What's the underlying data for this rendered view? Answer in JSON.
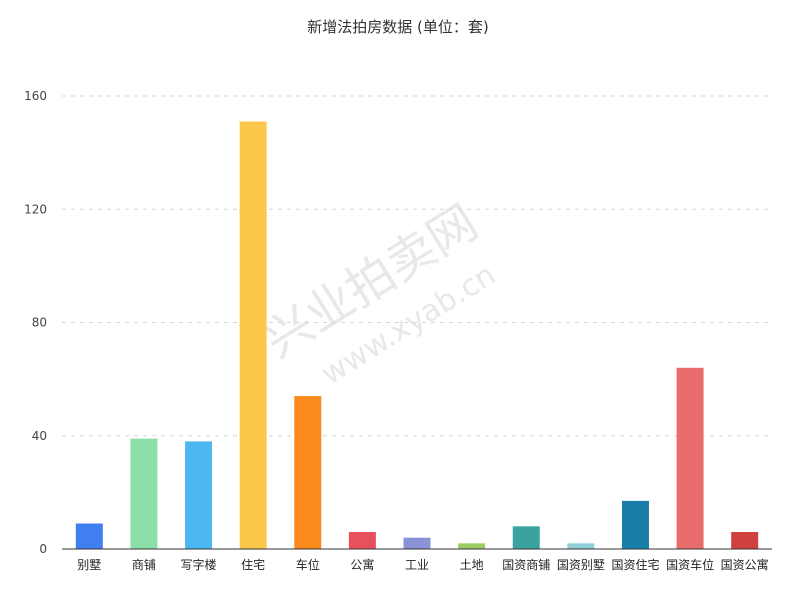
{
  "chart_data": {
    "type": "bar",
    "title": "新增法拍房数据 (单位：套)",
    "categories": [
      "别墅",
      "商铺",
      "写字楼",
      "住宅",
      "车位",
      "公寓",
      "工业",
      "土地",
      "国资商铺",
      "国资别墅",
      "国资住宅",
      "国资车位",
      "国资公寓"
    ],
    "values": [
      9,
      39,
      38,
      151,
      54,
      6,
      4,
      2,
      8,
      2,
      17,
      64,
      6
    ],
    "colors": [
      "#3f7ff0",
      "#8ddfa8",
      "#4db7f2",
      "#fbc84c",
      "#fb8a1c",
      "#e8505b",
      "#8a93d6",
      "#9ccc65",
      "#3aa3a0",
      "#8fcfd6",
      "#1a7fa8",
      "#e96b6b",
      "#d0403f"
    ],
    "yticks": [
      0,
      40,
      80,
      120,
      160
    ],
    "ylim": [
      0,
      160
    ],
    "grid": true,
    "xlabel": "",
    "ylabel": ""
  },
  "watermark": {
    "text": "兴业拍卖网",
    "url": "www.xyab.cn"
  }
}
